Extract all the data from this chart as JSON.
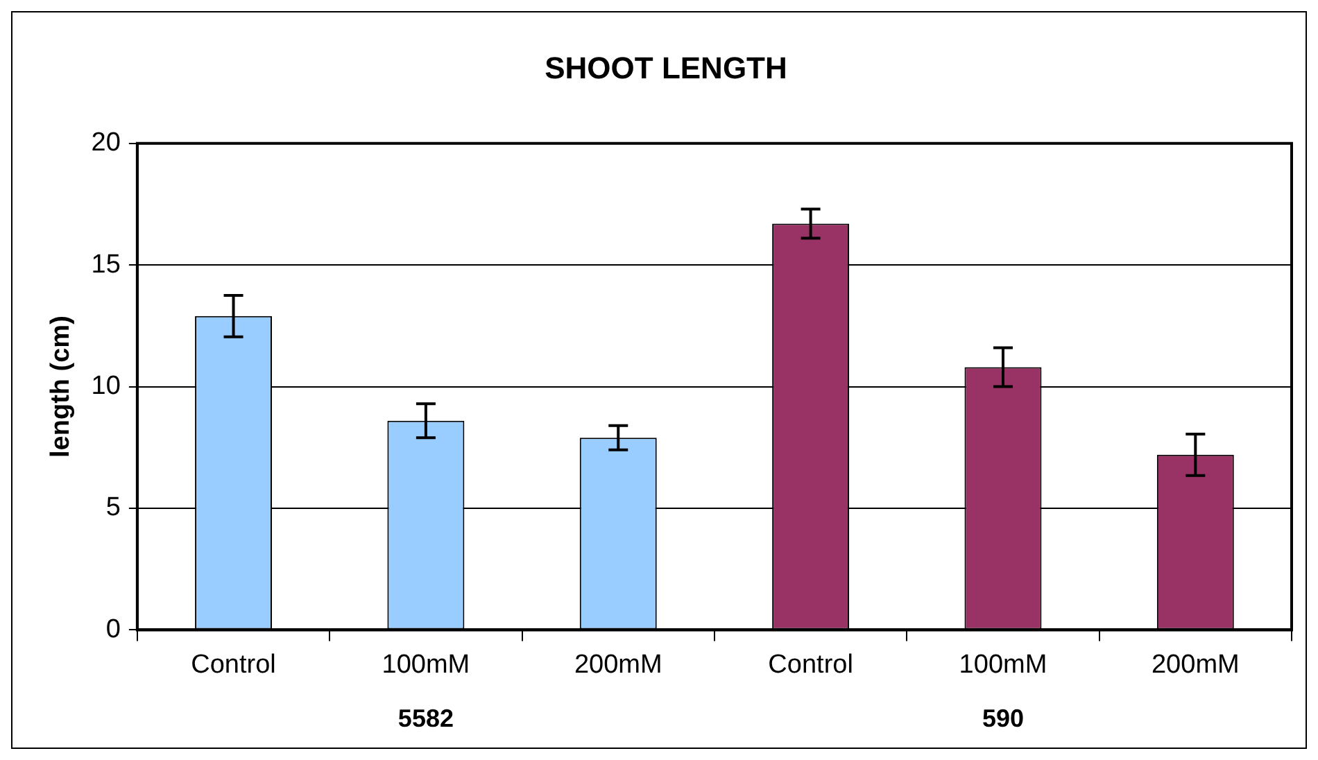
{
  "chart_data": {
    "type": "bar",
    "title": "SHOOT LENGTH",
    "ylabel": "length (cm)",
    "categories": [
      "Control",
      "100mM",
      "200mM",
      "Control",
      "100mM",
      "200mM"
    ],
    "values": [
      12.9,
      8.6,
      7.9,
      16.7,
      10.8,
      7.2
    ],
    "errors": [
      0.85,
      0.7,
      0.5,
      0.6,
      0.8,
      0.85
    ],
    "colors": [
      "#99ccff",
      "#99ccff",
      "#99ccff",
      "#993366",
      "#993366",
      "#993366"
    ],
    "annotations": [
      "5582",
      "590"
    ],
    "ylim": [
      0,
      20
    ],
    "yticks": [
      0,
      5,
      10,
      15,
      20
    ],
    "grid": "y"
  }
}
